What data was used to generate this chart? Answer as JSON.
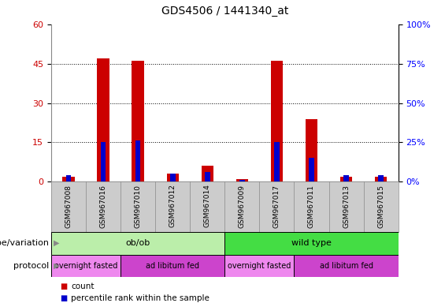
{
  "title": "GDS4506 / 1441340_at",
  "samples": [
    "GSM967008",
    "GSM967016",
    "GSM967010",
    "GSM967012",
    "GSM967014",
    "GSM967009",
    "GSM967017",
    "GSM967011",
    "GSM967013",
    "GSM967015"
  ],
  "count_values": [
    2,
    47,
    46,
    3,
    6,
    1,
    46,
    24,
    2,
    2
  ],
  "percentile_values": [
    4,
    25,
    26,
    5,
    6,
    1,
    25,
    15,
    4,
    4
  ],
  "ylim_left": [
    0,
    60
  ],
  "ylim_right": [
    0,
    100
  ],
  "yticks_left": [
    0,
    15,
    30,
    45,
    60
  ],
  "yticks_right": [
    0,
    25,
    50,
    75,
    100
  ],
  "ytick_labels_right": [
    "0%",
    "25%",
    "50%",
    "75%",
    "100%"
  ],
  "count_color": "#cc0000",
  "percentile_color": "#0000cc",
  "genotype_groups": [
    {
      "label": "ob/ob",
      "start": 0,
      "end": 5,
      "color": "#bbeeaa"
    },
    {
      "label": "wild type",
      "start": 5,
      "end": 10,
      "color": "#44dd44"
    }
  ],
  "protocol_groups": [
    {
      "label": "overnight fasted",
      "start": 0,
      "end": 2,
      "color": "#ee88ee"
    },
    {
      "label": "ad libitum fed",
      "start": 2,
      "end": 5,
      "color": "#cc44cc"
    },
    {
      "label": "overnight fasted",
      "start": 5,
      "end": 7,
      "color": "#ee88ee"
    },
    {
      "label": "ad libitum fed",
      "start": 7,
      "end": 10,
      "color": "#cc44cc"
    }
  ],
  "genotype_label": "genotype/variation",
  "protocol_label": "protocol",
  "legend_items": [
    {
      "label": "count",
      "color": "#cc0000"
    },
    {
      "label": "percentile rank within the sample",
      "color": "#0000cc"
    }
  ],
  "grid_color": "#000000",
  "bg_color": "#ffffff",
  "tick_area_bg": "#cccccc"
}
